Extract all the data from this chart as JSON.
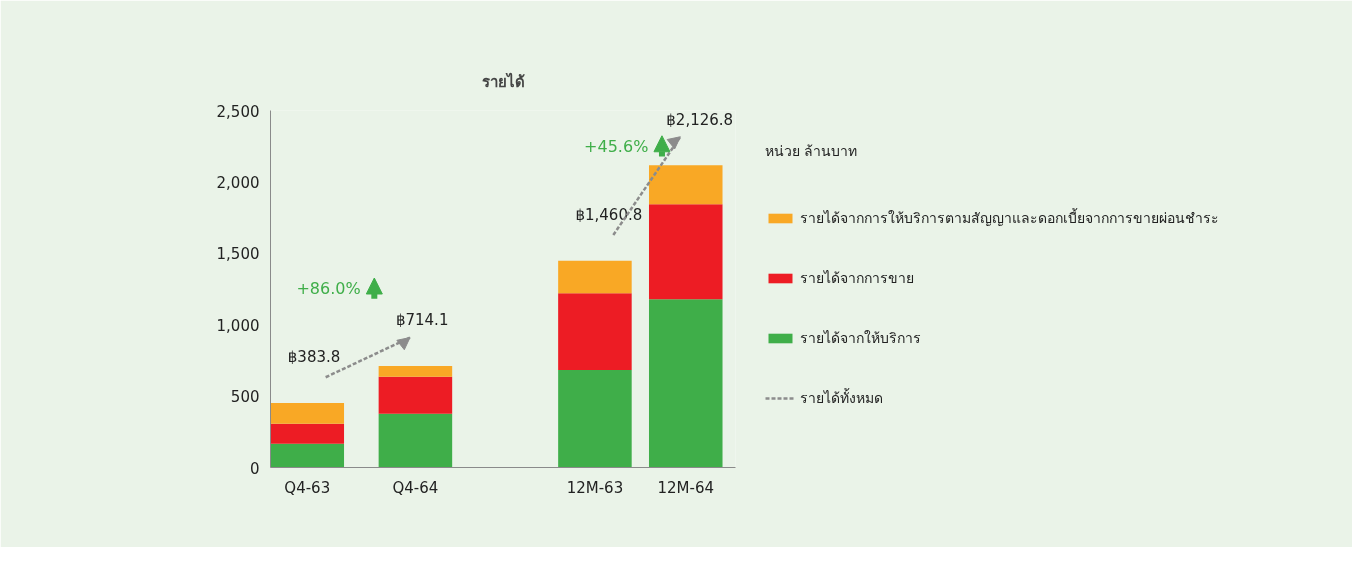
{
  "chart_data": {
    "type": "bar",
    "stacked": true,
    "title": "รายได้",
    "categories": [
      "Q4-63",
      "Q4-64",
      "12M-63",
      "12M-64"
    ],
    "series": [
      {
        "name": "รายได้จากให้บริการ",
        "color": "#3fae49",
        "values": [
          167,
          376,
          682,
          1178
        ]
      },
      {
        "name": "รายได้จากการขาย",
        "color": "#ed1c24",
        "values": [
          139,
          260,
          538,
          666
        ]
      },
      {
        "name": "รายได้จากการให้บริการตามสัญญาและดอกเบี้ยจากการขายผ่อนชำระ",
        "color": "#f9a825",
        "values": [
          146,
          74,
          228,
          272
        ]
      }
    ],
    "ylim": [
      0,
      2500
    ],
    "yticks": [
      0,
      {
        "value": 500,
        "label": "500"
      },
      {
        "value": 1000,
        "label": "1,000"
      },
      {
        "value": 1500,
        "label": "1,500"
      },
      {
        "value": 2000,
        "label": "2,000"
      },
      {
        "value": 2500,
        "label": "2,500"
      }
    ],
    "grid": false,
    "legend": "right",
    "annotations": [
      "หน่วย ล้านบาท",
      "รายได้ทั้งหมด",
      "฿383.8",
      "฿714.1",
      "฿1,460.8",
      "฿2,126.8",
      "+86.0%",
      "+45.6%"
    ]
  }
}
